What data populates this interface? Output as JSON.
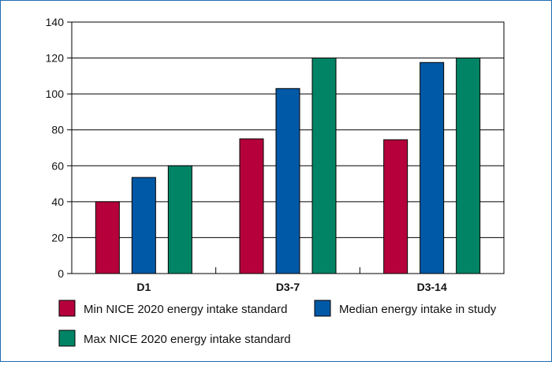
{
  "chart_data": {
    "type": "bar",
    "title": "",
    "xlabel": "",
    "ylabel": "",
    "categories": [
      "D1",
      "D3-7",
      "D3-14"
    ],
    "series": [
      {
        "name": "Min NICE 2020 energy intake standard",
        "color": "#b5003c",
        "values": [
          40,
          75,
          74.5
        ]
      },
      {
        "name": "Median energy intake in study",
        "color": "#0059a6",
        "values": [
          53.5,
          103,
          117.5
        ]
      },
      {
        "name": "Max NICE 2020 energy intake standard",
        "color": "#008465",
        "values": [
          60,
          120,
          120
        ]
      }
    ],
    "ylim": [
      0,
      140
    ],
    "yticks": [
      0,
      20,
      40,
      60,
      80,
      100,
      120,
      140
    ],
    "grid": true,
    "legend_position": "bottom"
  }
}
